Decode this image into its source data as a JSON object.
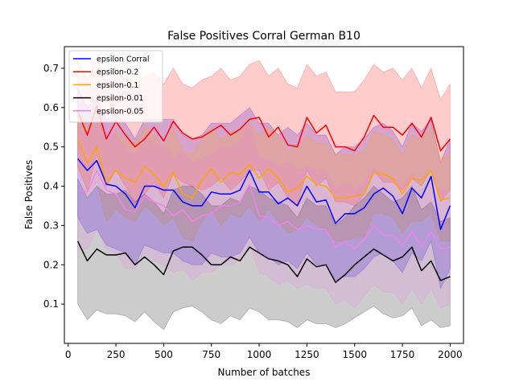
{
  "chart_data": {
    "type": "line",
    "title": "False Positives Corral German B10",
    "xlabel": "Number of batches",
    "ylabel": "False Positives",
    "xlim": [
      -20,
      2070
    ],
    "ylim": [
      0.0,
      0.755
    ],
    "xticks": [
      0,
      250,
      500,
      750,
      1000,
      1250,
      1500,
      1750,
      2000
    ],
    "yticks": [
      0.1,
      0.2,
      0.3,
      0.4,
      0.5,
      0.6,
      0.7
    ],
    "grid": false,
    "legend_position": "upper-left",
    "x": [
      50,
      100,
      150,
      200,
      250,
      300,
      350,
      400,
      450,
      500,
      550,
      600,
      650,
      700,
      750,
      800,
      850,
      900,
      950,
      1000,
      1050,
      1100,
      1150,
      1200,
      1250,
      1300,
      1350,
      1400,
      1450,
      1500,
      1550,
      1600,
      1650,
      1700,
      1750,
      1800,
      1850,
      1900,
      1950,
      2000
    ],
    "series": [
      {
        "name": "epsilon Corral",
        "color": "#0000ff",
        "values": [
          0.47,
          0.44,
          0.465,
          0.405,
          0.4,
          0.38,
          0.345,
          0.4,
          0.4,
          0.39,
          0.39,
          0.36,
          0.35,
          0.35,
          0.385,
          0.38,
          0.38,
          0.39,
          0.44,
          0.385,
          0.385,
          0.355,
          0.37,
          0.35,
          0.4,
          0.36,
          0.365,
          0.305,
          0.33,
          0.33,
          0.345,
          0.38,
          0.395,
          0.375,
          0.33,
          0.395,
          0.37,
          0.425,
          0.29,
          0.35
        ],
        "upper": [
          0.65,
          0.6,
          0.62,
          0.57,
          0.58,
          0.56,
          0.52,
          0.57,
          0.57,
          0.57,
          0.57,
          0.53,
          0.52,
          0.53,
          0.56,
          0.56,
          0.56,
          0.58,
          0.6,
          0.56,
          0.56,
          0.53,
          0.55,
          0.53,
          0.56,
          0.53,
          0.53,
          0.48,
          0.5,
          0.5,
          0.52,
          0.55,
          0.56,
          0.54,
          0.5,
          0.56,
          0.54,
          0.57,
          0.46,
          0.52
        ],
        "lower": [
          0.32,
          0.28,
          0.29,
          0.25,
          0.24,
          0.23,
          0.2,
          0.25,
          0.24,
          0.23,
          0.23,
          0.21,
          0.2,
          0.2,
          0.23,
          0.22,
          0.22,
          0.23,
          0.27,
          0.23,
          0.22,
          0.2,
          0.21,
          0.19,
          0.23,
          0.2,
          0.2,
          0.16,
          0.17,
          0.17,
          0.19,
          0.22,
          0.23,
          0.21,
          0.18,
          0.23,
          0.21,
          0.26,
          0.14,
          0.19
        ]
      },
      {
        "name": "epsilon-0.2",
        "color": "#ff0000",
        "values": [
          0.59,
          0.53,
          0.605,
          0.52,
          0.565,
          0.53,
          0.5,
          0.52,
          0.55,
          0.515,
          0.565,
          0.535,
          0.52,
          0.525,
          0.54,
          0.555,
          0.53,
          0.545,
          0.57,
          0.575,
          0.525,
          0.55,
          0.505,
          0.5,
          0.575,
          0.535,
          0.555,
          0.5,
          0.5,
          0.49,
          0.525,
          0.58,
          0.55,
          0.55,
          0.53,
          0.56,
          0.525,
          0.575,
          0.49,
          0.52
        ],
        "upper": [
          0.72,
          0.67,
          0.73,
          0.66,
          0.7,
          0.67,
          0.66,
          0.68,
          0.69,
          0.66,
          0.7,
          0.66,
          0.65,
          0.67,
          0.68,
          0.7,
          0.67,
          0.68,
          0.71,
          0.72,
          0.68,
          0.7,
          0.66,
          0.65,
          0.71,
          0.68,
          0.69,
          0.64,
          0.64,
          0.64,
          0.67,
          0.71,
          0.69,
          0.7,
          0.67,
          0.7,
          0.65,
          0.7,
          0.62,
          0.66
        ],
        "lower": [
          0.45,
          0.39,
          0.48,
          0.4,
          0.44,
          0.4,
          0.36,
          0.38,
          0.41,
          0.37,
          0.43,
          0.41,
          0.4,
          0.39,
          0.4,
          0.42,
          0.39,
          0.41,
          0.44,
          0.44,
          0.39,
          0.41,
          0.37,
          0.35,
          0.44,
          0.4,
          0.42,
          0.36,
          0.36,
          0.35,
          0.38,
          0.44,
          0.41,
          0.41,
          0.39,
          0.42,
          0.4,
          0.44,
          0.36,
          0.39
        ]
      },
      {
        "name": "epsilon-0.1",
        "color": "#ffa500",
        "values": [
          0.52,
          0.46,
          0.5,
          0.41,
          0.44,
          0.42,
          0.41,
          0.45,
          0.43,
          0.4,
          0.435,
          0.38,
          0.37,
          0.415,
          0.445,
          0.41,
          0.435,
          0.43,
          0.455,
          0.42,
          0.445,
          0.42,
          0.385,
          0.395,
          0.425,
          0.405,
          0.4,
          0.37,
          0.37,
          0.375,
          0.38,
          0.435,
          0.43,
          0.42,
          0.38,
          0.42,
          0.415,
          0.44,
          0.365,
          0.37
        ],
        "upper": [
          0.6,
          0.55,
          0.59,
          0.51,
          0.54,
          0.52,
          0.51,
          0.55,
          0.53,
          0.5,
          0.55,
          0.49,
          0.48,
          0.52,
          0.55,
          0.52,
          0.54,
          0.54,
          0.56,
          0.53,
          0.55,
          0.53,
          0.49,
          0.5,
          0.53,
          0.51,
          0.51,
          0.48,
          0.48,
          0.48,
          0.49,
          0.54,
          0.53,
          0.52,
          0.48,
          0.53,
          0.52,
          0.55,
          0.47,
          0.48
        ],
        "lower": [
          0.44,
          0.37,
          0.41,
          0.31,
          0.34,
          0.32,
          0.31,
          0.35,
          0.33,
          0.3,
          0.32,
          0.27,
          0.26,
          0.31,
          0.34,
          0.3,
          0.33,
          0.32,
          0.35,
          0.31,
          0.34,
          0.31,
          0.28,
          0.29,
          0.32,
          0.3,
          0.29,
          0.26,
          0.26,
          0.27,
          0.27,
          0.33,
          0.33,
          0.32,
          0.28,
          0.31,
          0.31,
          0.33,
          0.26,
          0.26
        ]
      },
      {
        "name": "epsilon-0.01",
        "color": "#000000",
        "values": [
          0.26,
          0.21,
          0.24,
          0.225,
          0.225,
          0.23,
          0.2,
          0.22,
          0.2,
          0.175,
          0.235,
          0.245,
          0.245,
          0.225,
          0.2,
          0.2,
          0.22,
          0.21,
          0.245,
          0.23,
          0.215,
          0.21,
          0.2,
          0.17,
          0.215,
          0.195,
          0.2,
          0.155,
          0.175,
          0.2,
          0.22,
          0.24,
          0.225,
          0.21,
          0.22,
          0.245,
          0.185,
          0.21,
          0.16,
          0.17
        ],
        "upper": [
          0.42,
          0.37,
          0.4,
          0.38,
          0.38,
          0.39,
          0.36,
          0.38,
          0.36,
          0.33,
          0.39,
          0.4,
          0.4,
          0.38,
          0.35,
          0.35,
          0.37,
          0.36,
          0.4,
          0.39,
          0.37,
          0.36,
          0.35,
          0.32,
          0.37,
          0.35,
          0.35,
          0.3,
          0.32,
          0.35,
          0.37,
          0.4,
          0.38,
          0.36,
          0.37,
          0.4,
          0.34,
          0.36,
          0.31,
          0.32
        ],
        "lower": [
          0.1,
          0.06,
          0.085,
          0.075,
          0.075,
          0.07,
          0.055,
          0.08,
          0.055,
          0.035,
          0.08,
          0.09,
          0.095,
          0.08,
          0.06,
          0.05,
          0.07,
          0.06,
          0.09,
          0.08,
          0.06,
          0.06,
          0.055,
          0.04,
          0.06,
          0.05,
          0.05,
          0.04,
          0.05,
          0.065,
          0.08,
          0.095,
          0.075,
          0.065,
          0.07,
          0.09,
          0.045,
          0.06,
          0.04,
          0.045
        ]
      },
      {
        "name": "epsilon-0.05",
        "color": "#ee82ee",
        "values": [
          0.39,
          0.385,
          0.44,
          0.39,
          0.38,
          0.34,
          0.335,
          0.375,
          0.36,
          0.35,
          0.325,
          0.34,
          0.31,
          0.325,
          0.33,
          0.35,
          0.35,
          0.36,
          0.405,
          0.325,
          0.32,
          0.3,
          0.31,
          0.29,
          0.3,
          0.29,
          0.29,
          0.245,
          0.26,
          0.24,
          0.265,
          0.3,
          0.275,
          0.275,
          0.25,
          0.285,
          0.245,
          0.285,
          0.24,
          0.245
        ],
        "upper": [
          0.54,
          0.53,
          0.59,
          0.54,
          0.53,
          0.49,
          0.48,
          0.52,
          0.51,
          0.5,
          0.47,
          0.49,
          0.46,
          0.47,
          0.48,
          0.5,
          0.5,
          0.51,
          0.56,
          0.47,
          0.47,
          0.45,
          0.46,
          0.44,
          0.45,
          0.44,
          0.44,
          0.39,
          0.41,
          0.39,
          0.41,
          0.45,
          0.42,
          0.42,
          0.4,
          0.43,
          0.39,
          0.43,
          0.39,
          0.39
        ],
        "lower": [
          0.24,
          0.24,
          0.29,
          0.24,
          0.23,
          0.19,
          0.19,
          0.23,
          0.21,
          0.2,
          0.18,
          0.19,
          0.16,
          0.18,
          0.18,
          0.2,
          0.2,
          0.21,
          0.25,
          0.18,
          0.17,
          0.15,
          0.16,
          0.14,
          0.15,
          0.14,
          0.14,
          0.1,
          0.11,
          0.09,
          0.12,
          0.15,
          0.13,
          0.13,
          0.1,
          0.14,
          0.1,
          0.14,
          0.09,
          0.1
        ]
      }
    ]
  }
}
